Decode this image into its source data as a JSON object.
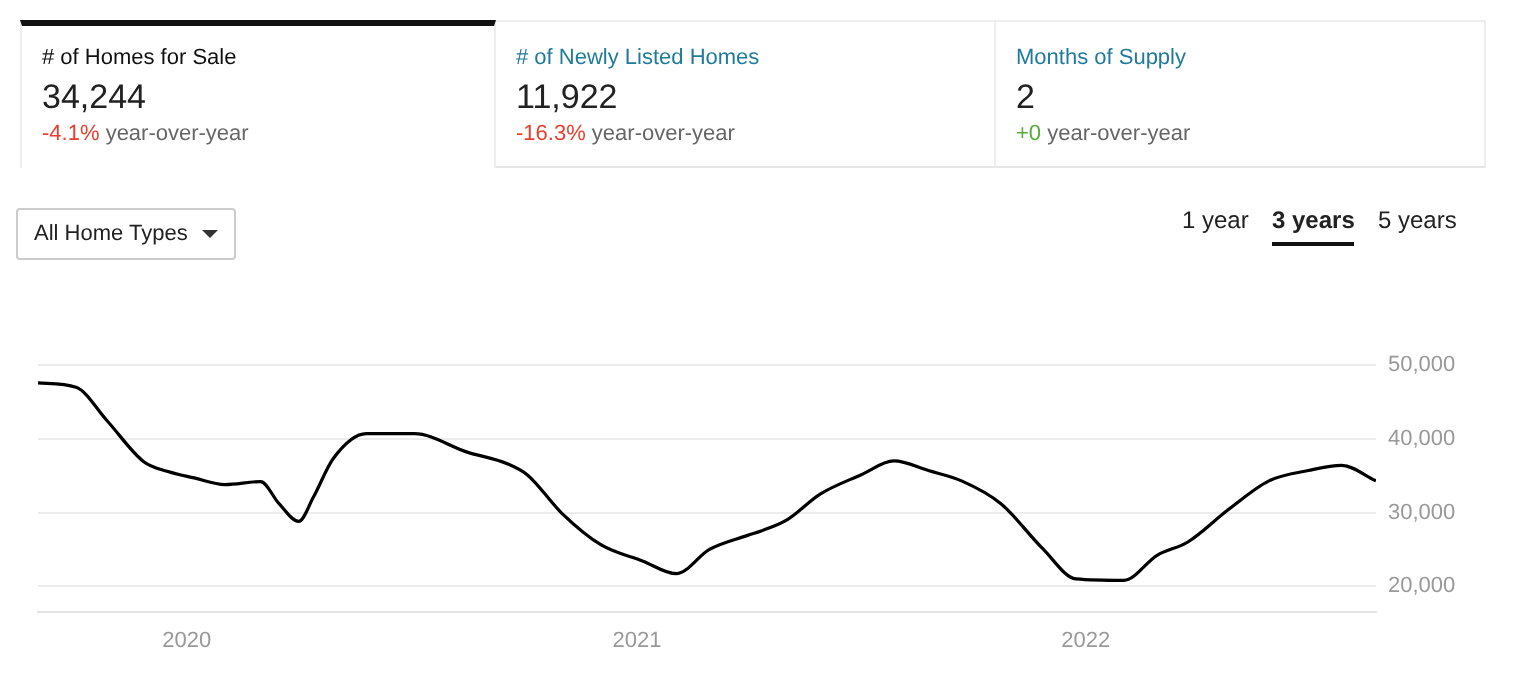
{
  "chart_data": {
    "type": "line",
    "title": "# of Homes for Sale",
    "annotations": [
      "34,244",
      "-4.1%",
      "year-over-year",
      "# of Newly Listed Homes",
      "11,922",
      "-16.3%",
      "year-over-year",
      "Months of Supply",
      "2",
      "+0",
      "year-over-year",
      "All Home Types",
      "1 year",
      "3 years",
      "5 years"
    ],
    "x": [
      "2019-09-02",
      "2019-10-03",
      "2019-10-28",
      "2019-11-27",
      "2019-12-16",
      "2020-01-07",
      "2020-02-01",
      "2020-03-01",
      "2020-03-16",
      "2020-04-01",
      "2020-04-13",
      "2020-04-29",
      "2020-05-26",
      "2020-07-04",
      "2020-08-16",
      "2020-09-18",
      "2020-10-04",
      "2020-11-01",
      "2020-12-03",
      "2021-01-06",
      "2021-02-02",
      "2021-03-01",
      "2021-04-01",
      "2021-04-12",
      "2021-05-03",
      "2021-05-30",
      "2021-07-02",
      "2021-07-29",
      "2021-08-26",
      "2021-09-22",
      "2021-10-24",
      "2021-11-27",
      "2021-12-24",
      "2022-02-01",
      "2022-02-28",
      "2022-03-25",
      "2022-04-27",
      "2022-05-30",
      "2022-07-01",
      "2022-07-28",
      "2022-08-25"
    ],
    "series": [
      {
        "color": "#000000",
        "values": [
          47600,
          47000,
          42500,
          36900,
          35600,
          34700,
          33800,
          34200,
          31200,
          28800,
          32100,
          37300,
          40700,
          40700,
          38200,
          36600,
          35100,
          29900,
          25600,
          23400,
          21700,
          25000,
          26900,
          27500,
          29000,
          32500,
          35100,
          37000,
          35700,
          34300,
          31200,
          25100,
          21000,
          20800,
          24200,
          26000,
          30400,
          34300,
          35700,
          36400,
          34300
        ]
      }
    ],
    "xlim": [
      "2019-09-02",
      "2022-08-25"
    ],
    "xticks": [
      {
        "value": "2020",
        "label": "2020"
      },
      {
        "value": "2021",
        "label": "2021"
      },
      {
        "value": "2022",
        "label": "2022"
      }
    ],
    "ylim": [
      16500,
      50000
    ],
    "yticks": [
      {
        "value": 20000,
        "label": "20,000"
      },
      {
        "value": 30000,
        "label": "30,000"
      },
      {
        "value": 40000,
        "label": "40,000"
      },
      {
        "value": 50000,
        "label": "50,000"
      }
    ],
    "grid": "y",
    "legend": false,
    "marker": "none",
    "line_style": "solid"
  }
}
